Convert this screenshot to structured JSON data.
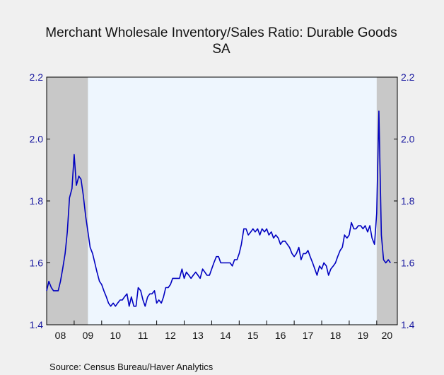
{
  "colors": {
    "background": "#f0f0f0",
    "plot_background": "#eef6fe",
    "recession_shading": "#c8c8c8",
    "line": "#0000c0",
    "tick_labels": "#1a1aa0"
  },
  "source": "Source:   Census Bureau/Haver Analytics",
  "chart_data": {
    "type": "line",
    "title": "Merchant Wholesale Inventory/Sales Ratio: Durable Goods",
    "subtitle": "SA",
    "xlabel": "",
    "ylabel": "",
    "ylim": [
      1.4,
      2.2
    ],
    "yticks": [
      1.4,
      1.6,
      1.8,
      2.0,
      2.2
    ],
    "ytick_labels": [
      "1.4",
      "1.6",
      "1.8",
      "2.0",
      "2.2"
    ],
    "xlim": [
      2008.0,
      2020.75
    ],
    "xtick_labels": [
      "08",
      "09",
      "10",
      "11",
      "12",
      "13",
      "14",
      "15",
      "16",
      "17",
      "18",
      "19",
      "20"
    ],
    "grid": false,
    "legend": "none",
    "recessions": [
      [
        2008.0,
        2009.5
      ],
      [
        2020.0,
        2020.75
      ]
    ],
    "series": [
      {
        "x": [
          2008.0,
          2008.08,
          2008.17,
          2008.25,
          2008.33,
          2008.42,
          2008.5,
          2008.58,
          2008.67,
          2008.75,
          2008.83,
          2008.92,
          2009.0,
          2009.08,
          2009.17,
          2009.25,
          2009.33,
          2009.42,
          2009.5,
          2009.58,
          2009.67,
          2009.75,
          2009.83,
          2009.92,
          2010.0,
          2010.08,
          2010.17,
          2010.25,
          2010.33,
          2010.42,
          2010.5,
          2010.58,
          2010.67,
          2010.75,
          2010.83,
          2010.92,
          2011.0,
          2011.08,
          2011.17,
          2011.25,
          2011.33,
          2011.42,
          2011.5,
          2011.58,
          2011.67,
          2011.75,
          2011.83,
          2011.92,
          2012.0,
          2012.08,
          2012.17,
          2012.25,
          2012.33,
          2012.42,
          2012.5,
          2012.58,
          2012.67,
          2012.75,
          2012.83,
          2012.92,
          2013.0,
          2013.08,
          2013.17,
          2013.25,
          2013.33,
          2013.42,
          2013.5,
          2013.58,
          2013.67,
          2013.75,
          2013.83,
          2013.92,
          2014.0,
          2014.08,
          2014.17,
          2014.25,
          2014.33,
          2014.42,
          2014.5,
          2014.58,
          2014.67,
          2014.75,
          2014.83,
          2014.92,
          2015.0,
          2015.08,
          2015.17,
          2015.25,
          2015.33,
          2015.42,
          2015.5,
          2015.58,
          2015.67,
          2015.75,
          2015.83,
          2015.92,
          2016.0,
          2016.08,
          2016.17,
          2016.25,
          2016.33,
          2016.42,
          2016.5,
          2016.58,
          2016.67,
          2016.75,
          2016.83,
          2016.92,
          2017.0,
          2017.08,
          2017.17,
          2017.25,
          2017.33,
          2017.42,
          2017.5,
          2017.58,
          2017.67,
          2017.75,
          2017.83,
          2017.92,
          2018.0,
          2018.08,
          2018.17,
          2018.25,
          2018.33,
          2018.42,
          2018.5,
          2018.58,
          2018.67,
          2018.75,
          2018.83,
          2018.92,
          2019.0,
          2019.08,
          2019.17,
          2019.25,
          2019.33,
          2019.42,
          2019.5,
          2019.58,
          2019.67,
          2019.75,
          2019.83,
          2019.92,
          2020.0,
          2020.08,
          2020.17,
          2020.25,
          2020.33,
          2020.42,
          2020.5
        ],
        "y": [
          1.51,
          1.54,
          1.52,
          1.51,
          1.51,
          1.51,
          1.54,
          1.58,
          1.63,
          1.7,
          1.81,
          1.84,
          1.95,
          1.85,
          1.88,
          1.87,
          1.82,
          1.75,
          1.7,
          1.65,
          1.63,
          1.6,
          1.57,
          1.54,
          1.53,
          1.51,
          1.49,
          1.47,
          1.46,
          1.47,
          1.46,
          1.47,
          1.48,
          1.48,
          1.49,
          1.5,
          1.46,
          1.49,
          1.46,
          1.46,
          1.52,
          1.51,
          1.48,
          1.46,
          1.49,
          1.5,
          1.5,
          1.51,
          1.47,
          1.48,
          1.47,
          1.49,
          1.52,
          1.52,
          1.53,
          1.55,
          1.55,
          1.55,
          1.55,
          1.58,
          1.55,
          1.57,
          1.56,
          1.55,
          1.56,
          1.57,
          1.56,
          1.55,
          1.58,
          1.57,
          1.56,
          1.56,
          1.58,
          1.6,
          1.62,
          1.62,
          1.6,
          1.6,
          1.6,
          1.6,
          1.6,
          1.59,
          1.61,
          1.61,
          1.63,
          1.66,
          1.71,
          1.71,
          1.69,
          1.7,
          1.71,
          1.7,
          1.71,
          1.69,
          1.71,
          1.7,
          1.71,
          1.69,
          1.7,
          1.68,
          1.69,
          1.68,
          1.66,
          1.67,
          1.67,
          1.66,
          1.65,
          1.63,
          1.62,
          1.63,
          1.65,
          1.61,
          1.63,
          1.63,
          1.64,
          1.62,
          1.6,
          1.58,
          1.56,
          1.59,
          1.58,
          1.6,
          1.59,
          1.56,
          1.58,
          1.59,
          1.6,
          1.62,
          1.64,
          1.65,
          1.69,
          1.68,
          1.69,
          1.73,
          1.71,
          1.71,
          1.72,
          1.72,
          1.71,
          1.72,
          1.7,
          1.72,
          1.68,
          1.66,
          1.76,
          2.09,
          1.69,
          1.61,
          1.6,
          1.61,
          1.6
        ]
      }
    ]
  }
}
